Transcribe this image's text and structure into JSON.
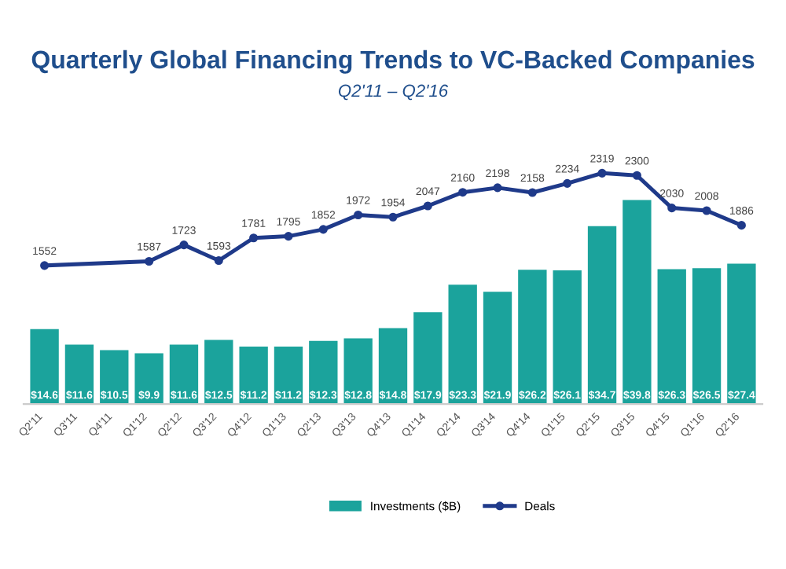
{
  "chart_data": {
    "type": "bar",
    "title": "Quarterly Global Financing Trends to VC-Backed Companies",
    "subtitle": "Q2'11 – Q2'16",
    "categories": [
      "Q2'11",
      "Q3'11",
      "Q4'11",
      "Q1'12",
      "Q2'12",
      "Q3'12",
      "Q4'12",
      "Q1'13",
      "Q2'13",
      "Q3'13",
      "Q4'13",
      "Q1'14",
      "Q2'14",
      "Q3'14",
      "Q4'14",
      "Q1'15",
      "Q2'15",
      "Q3'15",
      "Q4'15",
      "Q1'16",
      "Q2'16"
    ],
    "series": [
      {
        "name": "Investments ($B)",
        "color": "#1ba39c",
        "values": [
          14.6,
          11.6,
          10.5,
          9.9,
          11.6,
          12.5,
          11.2,
          11.2,
          12.3,
          12.8,
          14.8,
          17.9,
          23.3,
          21.9,
          26.2,
          26.1,
          34.7,
          39.8,
          26.3,
          26.5,
          27.4
        ],
        "value_labels": [
          "$14.6",
          "$11.6",
          "$10.5",
          "$9.9",
          "$11.6",
          "$12.5",
          "$11.2",
          "$11.2",
          "$12.3",
          "$12.8",
          "$14.8",
          "$17.9",
          "$23.3",
          "$21.9",
          "$26.2",
          "$26.1",
          "$34.7",
          "$39.8",
          "$26.3",
          "$26.5",
          "$27.4"
        ]
      },
      {
        "name": "Deals",
        "type": "line",
        "axis": "y2",
        "color": "#1f3a8a",
        "values": [
          1552,
          null,
          null,
          1587,
          1723,
          1593,
          1781,
          1795,
          1852,
          1972,
          1954,
          2047,
          2160,
          2198,
          2158,
          2234,
          2319,
          2300,
          2030,
          2008,
          1886
        ],
        "value_labels": [
          "1552",
          null,
          null,
          "1587",
          "1723",
          "1593",
          "1781",
          "1795",
          "1852",
          "1972",
          "1954",
          "2047",
          "2160",
          "2198",
          "2158",
          "2234",
          "2319",
          "2300",
          "2030",
          "2008",
          "1886"
        ]
      }
    ],
    "marker": "circle",
    "legend": "bottom",
    "grid": false,
    "tick_labels": "x"
  }
}
